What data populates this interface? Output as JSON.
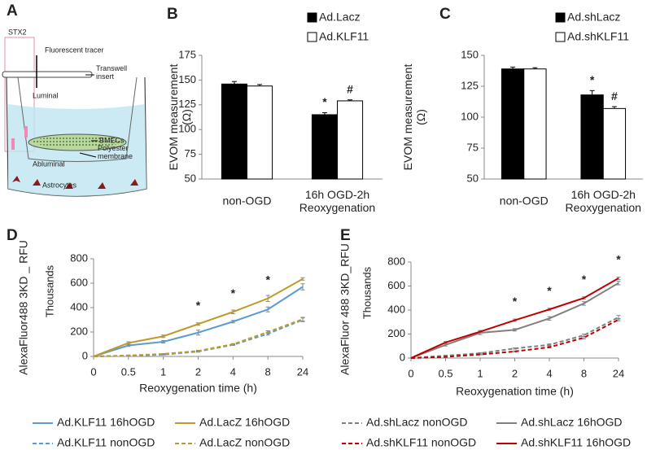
{
  "diagram": {
    "panel_label": "A",
    "labels": [
      "STX2",
      "Fluorescent tracer",
      "Transwell\ninsert",
      "Luminal",
      "BMECs",
      "Polyester\nmembrane",
      "Abluminal",
      "Astrocytes"
    ]
  },
  "chart_data": [
    {
      "type": "bar",
      "panel_label": "B",
      "ylabel": "EVOM measurement\n(Ω)",
      "categories": [
        "non-OGD",
        "16h OGD-2h\nReoxygenation"
      ],
      "series": [
        {
          "name": "Ad.Lacz",
          "color": "#000000",
          "values": [
            146,
            115
          ],
          "errors": [
            2.5,
            2
          ],
          "marks": [
            null,
            "*"
          ]
        },
        {
          "name": "Ad.KLF11",
          "color": "#ffffff",
          "values": [
            144,
            129
          ],
          "errors": [
            1.5,
            1
          ],
          "marks": [
            null,
            "#"
          ]
        }
      ],
      "ylim": [
        50,
        175
      ],
      "yticks": [
        50,
        75,
        100,
        125,
        150,
        175
      ]
    },
    {
      "type": "bar",
      "panel_label": "C",
      "ylabel": "EVOM measurement\n(Ω)",
      "categories": [
        "non-OGD",
        "16h OGD-2h\nReoxygenation"
      ],
      "series": [
        {
          "name": "Ad.shLacz",
          "color": "#000000",
          "values": [
            139,
            118
          ],
          "errors": [
            1.5,
            3.5
          ],
          "marks": [
            null,
            "*"
          ]
        },
        {
          "name": "Ad.shKLF11",
          "color": "#ffffff",
          "values": [
            139,
            107
          ],
          "errors": [
            1,
            1.5
          ],
          "marks": [
            null,
            "#"
          ]
        }
      ],
      "ylim": [
        50,
        150
      ],
      "yticks": [
        50,
        75,
        100,
        125,
        150
      ]
    },
    {
      "type": "line",
      "panel_label": "D",
      "ylabel": "AlexaFluor488 3KD _ RFU",
      "yunit": "Thousands",
      "xlabel": "Reoxygenation time (h)",
      "categories": [
        "0",
        "0.5",
        "1",
        "2",
        "4",
        "8",
        "24"
      ],
      "series": [
        {
          "name": "Ad.KLF11 16hOGD",
          "color": "#5b9bd5",
          "dashed": false,
          "values": [
            0,
            90,
            120,
            195,
            285,
            385,
            570
          ],
          "errors": [
            3,
            8,
            10,
            20,
            10,
            20,
            25
          ]
        },
        {
          "name": "Ad.LacZ 16hOGD",
          "color": "#c09a26",
          "dashed": false,
          "values": [
            0,
            110,
            165,
            265,
            365,
            475,
            635
          ],
          "errors": [
            3,
            10,
            10,
            10,
            15,
            25,
            10
          ],
          "marks": [
            null,
            null,
            null,
            "*",
            "*",
            "*",
            null
          ]
        },
        {
          "name": "Ad.KLF11 nonOGD",
          "color": "#5b9bd5",
          "dashed": true,
          "values": [
            0,
            5,
            15,
            40,
            95,
            185,
            300
          ],
          "errors": [
            2,
            3,
            3,
            5,
            5,
            10,
            15
          ]
        },
        {
          "name": "Ad.LacZ nonOGD",
          "color": "#c09a26",
          "dashed": true,
          "values": [
            0,
            8,
            20,
            45,
            100,
            200,
            305
          ],
          "errors": [
            2,
            3,
            3,
            5,
            5,
            10,
            15
          ]
        }
      ],
      "ylim": [
        0,
        800
      ],
      "yticks": [
        0,
        200,
        400,
        600,
        800
      ]
    },
    {
      "type": "line",
      "panel_label": "E",
      "ylabel": "AlexaFluor 488 3KD_RFU",
      "yunit": "Thousands",
      "xlabel": "Reoxygenation time (h)",
      "categories": [
        "0",
        "0.5",
        "1",
        "2",
        "4",
        "8",
        "24"
      ],
      "series": [
        {
          "name": "Ad.shLacz nonOGD",
          "color": "#808080",
          "dashed": true,
          "values": [
            0,
            20,
            40,
            80,
            110,
            190,
            340
          ],
          "errors": [
            2,
            3,
            5,
            5,
            8,
            10,
            15
          ]
        },
        {
          "name": "Ad.shLacz 16hOGD",
          "color": "#808080",
          "dashed": false,
          "values": [
            0,
            110,
            210,
            235,
            330,
            455,
            625
          ],
          "errors": [
            3,
            10,
            15,
            10,
            15,
            15,
            15
          ]
        },
        {
          "name": "Ad.shKLF11 nonOGD",
          "color": "#c00000",
          "dashed": true,
          "values": [
            0,
            10,
            30,
            55,
            90,
            170,
            320
          ],
          "errors": [
            2,
            3,
            3,
            5,
            5,
            10,
            10
          ]
        },
        {
          "name": "Ad.shKLF11 16hOGD",
          "color": "#c00000",
          "dashed": false,
          "values": [
            0,
            130,
            220,
            315,
            405,
            500,
            665
          ],
          "errors": [
            3,
            8,
            10,
            10,
            10,
            10,
            10
          ],
          "marks": [
            null,
            null,
            null,
            "*",
            "*",
            "*",
            "*"
          ]
        }
      ],
      "ylim": [
        0,
        800
      ],
      "yticks": [
        0,
        200,
        400,
        600,
        800
      ]
    }
  ]
}
